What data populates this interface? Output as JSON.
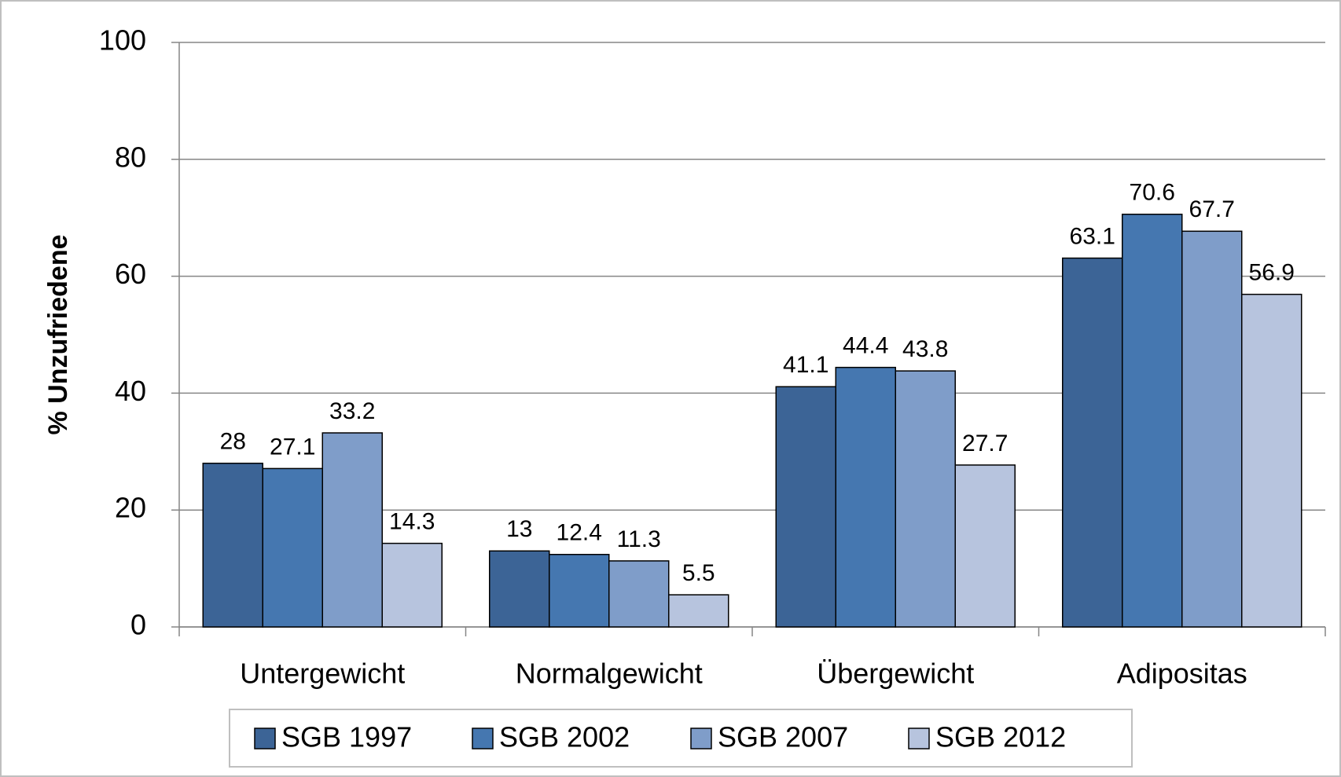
{
  "chart_data": {
    "type": "bar",
    "y_axis_label": "% Unzufriedene",
    "categories": [
      "Untergewicht",
      "Normalgewicht",
      "Übergewicht",
      "Adipositas"
    ],
    "series": [
      {
        "name": "SGB 1997",
        "color": "#3c6496",
        "values": [
          28,
          13,
          41.1,
          63.1
        ]
      },
      {
        "name": "SGB 2002",
        "color": "#4577b0",
        "values": [
          27.1,
          12.4,
          44.4,
          70.6
        ]
      },
      {
        "name": "SGB 2007",
        "color": "#7f9dc9",
        "values": [
          33.2,
          11.3,
          43.8,
          67.7
        ]
      },
      {
        "name": "SGB 2012",
        "color": "#b7c4de",
        "values": [
          14.3,
          5.5,
          27.7,
          56.9
        ]
      }
    ],
    "ylim": [
      0,
      100
    ],
    "yticks": [
      0,
      20,
      40,
      60,
      80,
      100
    ],
    "grid": true,
    "legend": "bottom"
  }
}
